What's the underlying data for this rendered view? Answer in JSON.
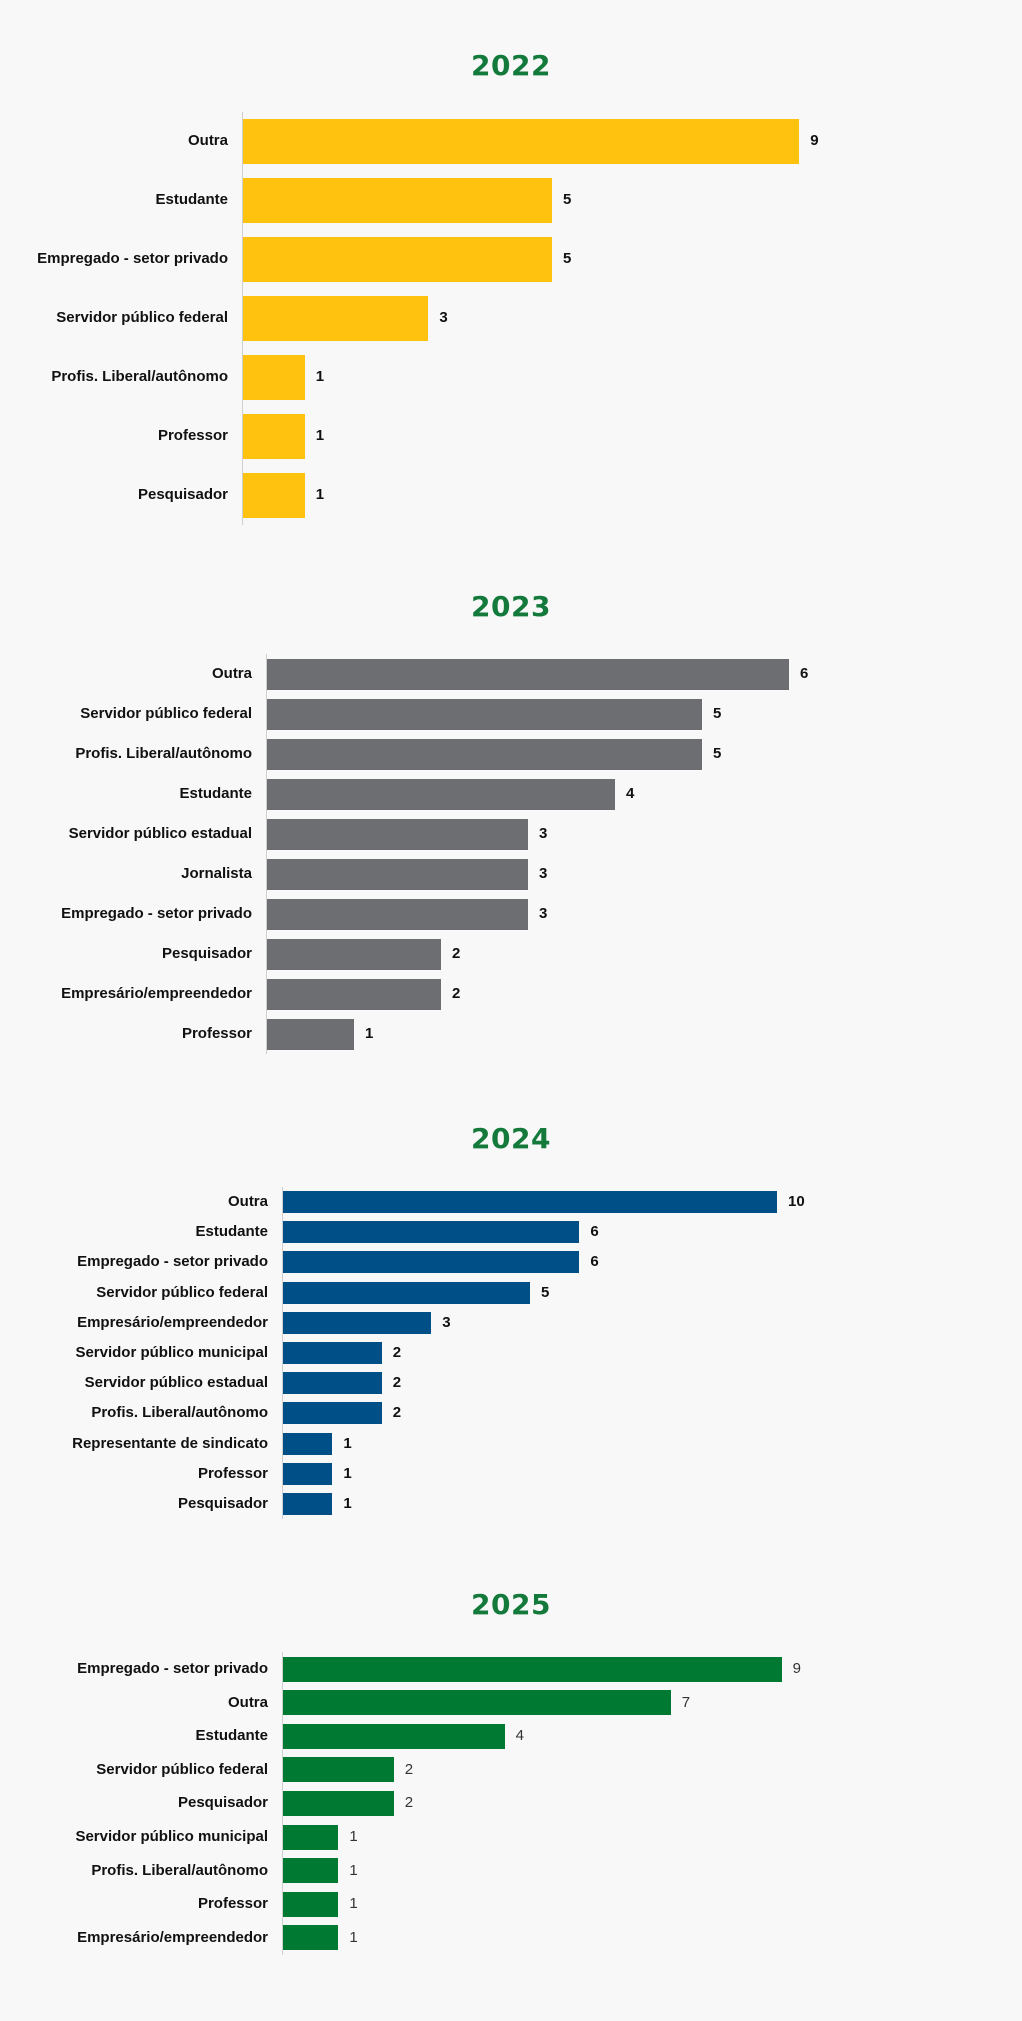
{
  "chart_data": [
    {
      "type": "bar",
      "orientation": "horizontal",
      "title": "2022",
      "color": "#ffc20e",
      "categories": [
        "Outra",
        "Estudante",
        "Empregado - setor privado",
        "Servidor público federal",
        "Profis. Liberal/autônomo",
        "Professor",
        "Pesquisador"
      ],
      "values": [
        9,
        5,
        5,
        3,
        1,
        1,
        1
      ],
      "xlim": [
        0,
        9
      ],
      "grid": false,
      "legend": "none"
    },
    {
      "type": "bar",
      "orientation": "horizontal",
      "title": "2023",
      "color": "#6d6e71",
      "categories": [
        "Outra",
        "Servidor público federal",
        "Profis. Liberal/autônomo",
        "Estudante",
        "Servidor público estadual",
        "Jornalista",
        "Empregado - setor privado",
        "Pesquisador",
        "Empresário/empreendedor",
        "Professor"
      ],
      "values": [
        6,
        5,
        5,
        4,
        3,
        3,
        3,
        2,
        2,
        1
      ],
      "xlim": [
        0,
        6
      ],
      "grid": false,
      "legend": "none"
    },
    {
      "type": "bar",
      "orientation": "horizontal",
      "title": "2024",
      "color": "#004f86",
      "categories": [
        "Outra",
        "Estudante",
        "Empregado - setor privado",
        "Servidor público federal",
        "Empresário/empreendedor",
        "Servidor público municipal",
        "Servidor público estadual",
        "Profis. Liberal/autônomo",
        "Representante de sindicato",
        "Professor",
        "Pesquisador"
      ],
      "values": [
        10,
        6,
        6,
        5,
        3,
        2,
        2,
        2,
        1,
        1,
        1
      ],
      "xlim": [
        0,
        10
      ],
      "grid": false,
      "legend": "none"
    },
    {
      "type": "bar",
      "orientation": "horizontal",
      "title": "2025",
      "color": "#007a33",
      "categories": [
        "Empregado - setor privado",
        "Outra",
        "Estudante",
        "Servidor público federal",
        "Pesquisador",
        "Servidor público municipal",
        "Profis. Liberal/autônomo",
        "Professor",
        "Empresário/empreendedor"
      ],
      "values": [
        9,
        7,
        4,
        2,
        2,
        1,
        1,
        1,
        1
      ],
      "xlim": [
        0,
        9
      ],
      "grid": false,
      "legend": "none"
    }
  ]
}
